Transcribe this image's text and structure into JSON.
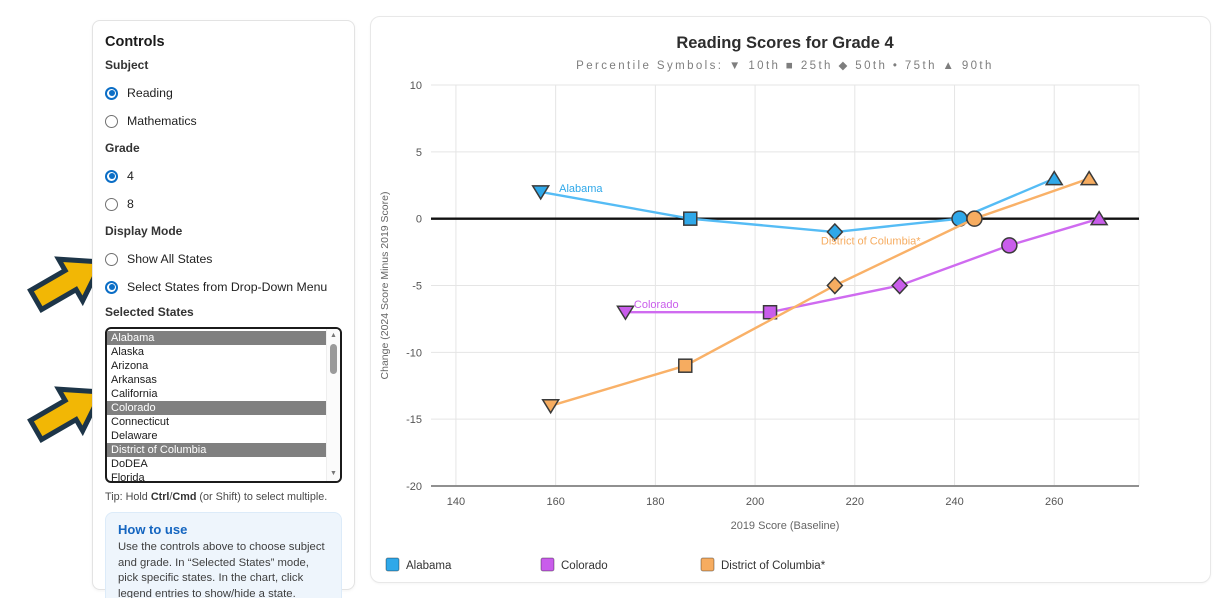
{
  "controls": {
    "title": "Controls",
    "subject": {
      "label": "Subject",
      "options": [
        {
          "label": "Reading",
          "selected": true
        },
        {
          "label": "Mathematics",
          "selected": false
        }
      ]
    },
    "grade": {
      "label": "Grade",
      "options": [
        {
          "label": "4",
          "selected": true
        },
        {
          "label": "8",
          "selected": false
        }
      ]
    },
    "display_mode": {
      "label": "Display Mode",
      "options": [
        {
          "label": "Show All States",
          "selected": false
        },
        {
          "label": "Select States from Drop-Down Menu",
          "selected": true
        }
      ]
    },
    "selected_states": {
      "label": "Selected States",
      "items": [
        {
          "label": "Alabama",
          "selected": true
        },
        {
          "label": "Alaska",
          "selected": false
        },
        {
          "label": "Arizona",
          "selected": false
        },
        {
          "label": "Arkansas",
          "selected": false
        },
        {
          "label": "California",
          "selected": false
        },
        {
          "label": "Colorado",
          "selected": true
        },
        {
          "label": "Connecticut",
          "selected": false
        },
        {
          "label": "Delaware",
          "selected": false
        },
        {
          "label": "District of Columbia",
          "selected": true
        },
        {
          "label": "DoDEA",
          "selected": false
        },
        {
          "label": "Florida",
          "selected": false
        }
      ]
    },
    "tip_segments": [
      {
        "text": "Tip: Hold ",
        "bold": false
      },
      {
        "text": "Ctrl",
        "bold": true
      },
      {
        "text": "/",
        "bold": false
      },
      {
        "text": "Cmd",
        "bold": true
      },
      {
        "text": " (or Shift) to select multiple.",
        "bold": false
      }
    ],
    "how_to_use": {
      "title": "How to use",
      "body": "Use the controls above to choose subject and grade. In “Selected States” mode, pick specific states. In the chart, click legend entries to show/hide a state."
    }
  },
  "annotations": {
    "arrow_fill": "#F2B705",
    "arrow_stroke": "#1d3548"
  },
  "chart_data": {
    "type": "line",
    "title": "Reading Scores for Grade 4",
    "subtitle": "Percentile Symbols: ▼ 10th ■ 25th ◆ 50th • 75th ▲ 90th",
    "xlabel": "2019 Score (Baseline)",
    "ylabel": "Change (2024 Score Minus 2019 Score)",
    "xlim": [
      135,
      277
    ],
    "ylim": [
      -20,
      10
    ],
    "xticks": [
      140,
      160,
      180,
      200,
      220,
      240,
      260
    ],
    "yticks": [
      10,
      5,
      0,
      -5,
      -10,
      -15,
      -20
    ],
    "grid": true,
    "zero_line_color": "#111111",
    "axis_line_color": "#909090",
    "grid_color": "#e5e5e5",
    "percentiles": [
      {
        "label": "10th",
        "symbol": "triangle-down"
      },
      {
        "label": "25th",
        "symbol": "square"
      },
      {
        "label": "50th",
        "symbol": "diamond"
      },
      {
        "label": "75th",
        "symbol": "circle"
      },
      {
        "label": "90th",
        "symbol": "triangle-up"
      }
    ],
    "series": [
      {
        "name": "Alabama",
        "color": "#2FA8E9",
        "line_color": "#55BCF5",
        "points": [
          {
            "pct": "10th",
            "x": 157,
            "y": 2
          },
          {
            "pct": "25th",
            "x": 187,
            "y": 0
          },
          {
            "pct": "50th",
            "x": 216,
            "y": -1
          },
          {
            "pct": "75th",
            "x": 241,
            "y": 0
          },
          {
            "pct": "90th",
            "x": 260,
            "y": 3
          }
        ],
        "label": {
          "text": "Alabama",
          "x": 160.7,
          "y": 2.3
        }
      },
      {
        "name": "Colorado",
        "color": "#C95DEB",
        "line_color": "#CF6BF0",
        "points": [
          {
            "pct": "10th",
            "x": 174,
            "y": -7
          },
          {
            "pct": "25th",
            "x": 203,
            "y": -7
          },
          {
            "pct": "50th",
            "x": 229,
            "y": -5
          },
          {
            "pct": "75th",
            "x": 251,
            "y": -2
          },
          {
            "pct": "90th",
            "x": 269,
            "y": 0
          }
        ],
        "label": {
          "text": "Colorado",
          "x": 175.7,
          "y": -6.4
        }
      },
      {
        "name": "District of Columbia*",
        "color": "#F6AC60",
        "line_color": "#F9B168",
        "points": [
          {
            "pct": "10th",
            "x": 159,
            "y": -14
          },
          {
            "pct": "25th",
            "x": 186,
            "y": -11
          },
          {
            "pct": "50th",
            "x": 216,
            "y": -5
          },
          {
            "pct": "75th",
            "x": 244,
            "y": 0
          },
          {
            "pct": "90th",
            "x": 267,
            "y": 3
          }
        ],
        "label": {
          "text": "District of Columbia*",
          "x": 213.2,
          "y": -1.65
        }
      }
    ],
    "legend": [
      {
        "label": "Alabama",
        "color": "#2FA8E9"
      },
      {
        "label": "Colorado",
        "color": "#C95DEB"
      },
      {
        "label": "District of Columbia*",
        "color": "#F6AC60"
      }
    ],
    "legend_position": "bottom"
  }
}
